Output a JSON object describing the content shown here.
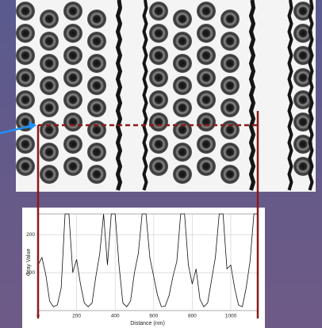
{
  "chart_data": {
    "type": "line",
    "xlabel": "Distance (nm)",
    "ylabel": "Gray Value",
    "x": [
      0,
      20,
      40,
      60,
      80,
      100,
      120,
      140,
      160,
      180,
      200,
      220,
      240,
      260,
      280,
      300,
      320,
      340,
      360,
      380,
      400,
      420,
      440,
      460,
      480,
      500,
      520,
      540,
      560,
      580,
      600,
      620,
      640,
      660,
      680,
      700,
      720,
      740,
      760,
      780,
      800,
      820,
      840,
      860,
      880,
      900,
      920,
      940,
      960,
      980,
      1000,
      1020,
      1040,
      1060,
      1080,
      1100,
      1120,
      1140
    ],
    "values": [
      120,
      140,
      95,
      25,
      10,
      15,
      60,
      255,
      255,
      100,
      135,
      70,
      20,
      10,
      20,
      90,
      150,
      255,
      120,
      255,
      255,
      120,
      20,
      10,
      25,
      100,
      150,
      255,
      255,
      140,
      90,
      40,
      10,
      12,
      40,
      90,
      130,
      255,
      255,
      120,
      70,
      110,
      30,
      10,
      20,
      80,
      140,
      255,
      255,
      110,
      120,
      60,
      15,
      10,
      60,
      130,
      255,
      255
    ],
    "color": "#111111",
    "xlim": [
      0,
      1140
    ],
    "ylim": [
      0,
      255
    ],
    "xticks": [
      0,
      200,
      400,
      600,
      800,
      1000
    ],
    "yticks": [
      100,
      200
    ],
    "grid": true
  }
}
